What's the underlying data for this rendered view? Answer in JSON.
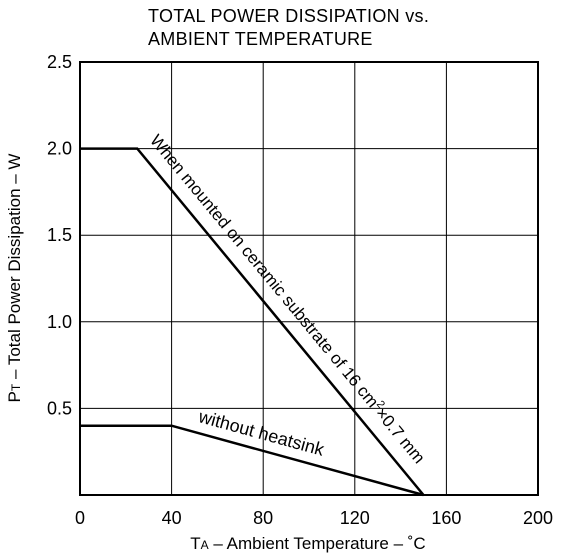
{
  "chart_data": {
    "type": "line",
    "title_lines": [
      "TOTAL POWER DISSIPATION vs.",
      "AMBIENT TEMPERATURE"
    ],
    "xlabel": {
      "symbol": "T",
      "subscript": "A",
      "text": " – Ambient Temperature – ˚C"
    },
    "ylabel": {
      "symbol": "P",
      "subscript": "T",
      "text": " – Total Power Dissipation – W"
    },
    "xlim": [
      0,
      200
    ],
    "ylim": [
      0,
      2.5
    ],
    "xticks": [
      "0",
      "40",
      "80",
      "120",
      "160",
      "200"
    ],
    "yticks": [
      "0.5",
      "1.0",
      "1.5",
      "2.0",
      "2.5"
    ],
    "xtick_values": [
      0,
      40,
      80,
      120,
      160,
      200
    ],
    "ytick_values": [
      0.5,
      1.0,
      1.5,
      2.0,
      2.5
    ],
    "grid": true,
    "series": [
      {
        "label_text": "When mounted on ceramic substrate of 16 cm",
        "label_sup": "2",
        "label_tail": "×0.7 mm",
        "x": [
          0,
          25,
          150
        ],
        "y": [
          2.0,
          2.0,
          0
        ]
      },
      {
        "label_text": "without heatsink",
        "x": [
          0,
          40,
          150
        ],
        "y": [
          0.4,
          0.4,
          0
        ]
      }
    ]
  }
}
